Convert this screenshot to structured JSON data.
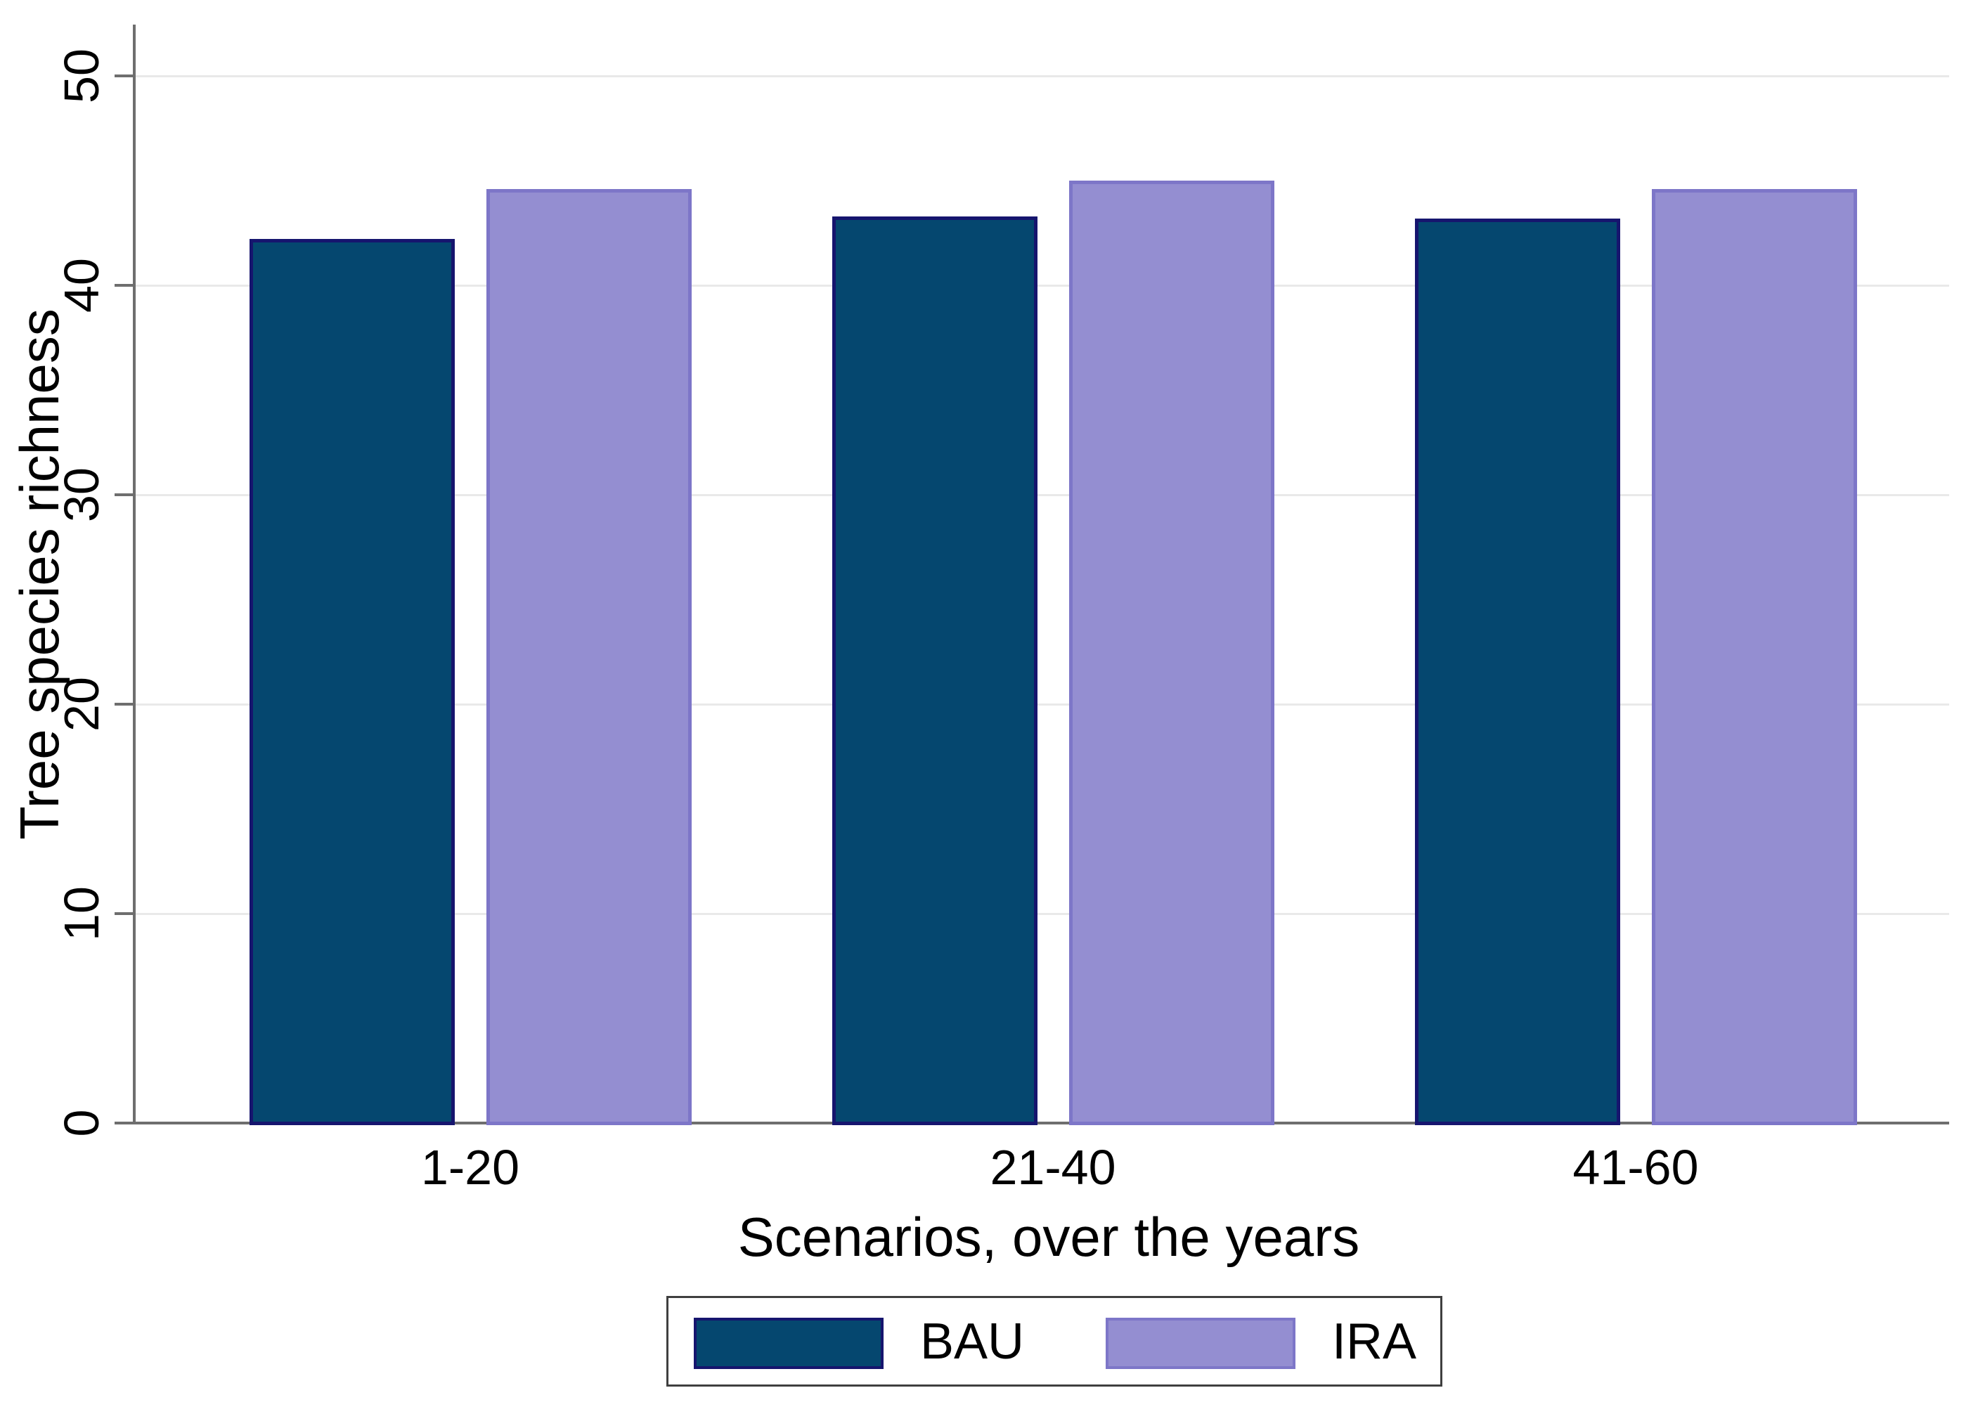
{
  "chart_data": {
    "type": "bar",
    "title": "",
    "categories": [
      "1-20",
      "21-40",
      "41-60"
    ],
    "series": [
      {
        "name": "BAU",
        "values": [
          42.2,
          43.3,
          43.2
        ],
        "fill": "#05476F",
        "border": "#16156E"
      },
      {
        "name": "IRA",
        "values": [
          44.6,
          45.0,
          44.6
        ],
        "fill": "#948ED1",
        "border": "#7D76C8"
      }
    ],
    "xlabel": "Scenarios, over the years",
    "ylabel": "Tree species richness",
    "yticks": [
      0,
      10,
      20,
      30,
      40,
      50
    ],
    "ylim": [
      0,
      52.4
    ],
    "grid": "horizontal-light-gray",
    "legend_position": "bottom",
    "legend_labels": [
      "BAU",
      "IRA"
    ]
  },
  "colors": {
    "background": "#ffffff",
    "axis": "#6e6e6e",
    "gridline": "#e9e9e9",
    "tick": "#6e6e6e",
    "text": "#000000",
    "legend_border": "#3f3f3f",
    "bau_fill": "#05476F",
    "bau_border": "#16156E",
    "ira_fill": "#948ED1",
    "ira_border": "#7D76C8"
  }
}
